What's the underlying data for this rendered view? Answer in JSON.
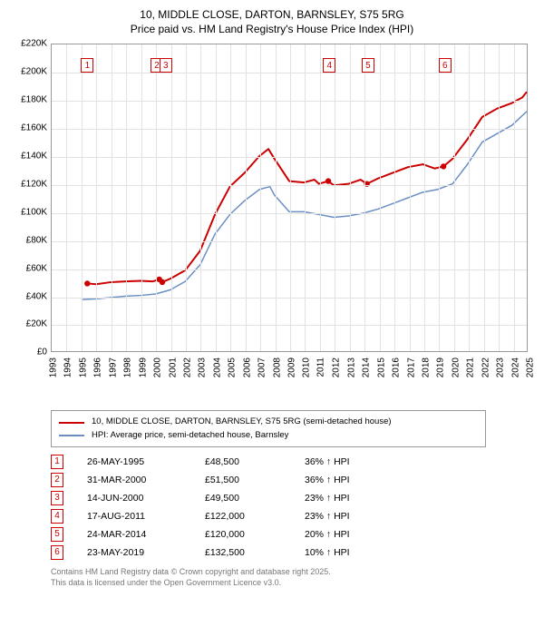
{
  "title_line1": "10, MIDDLE CLOSE, DARTON, BARNSLEY, S75 5RG",
  "title_line2": "Price paid vs. HM Land Registry's House Price Index (HPI)",
  "chart": {
    "type": "line",
    "background_color": "#ffffff",
    "grid_color": "#e2e2e2",
    "axis_color": "#999999",
    "x": {
      "min": 1993,
      "max": 2025,
      "step": 1
    },
    "y": {
      "min": 0,
      "max": 220000,
      "step": 20000,
      "prefix": "£",
      "suffix": "K",
      "div": 1000
    },
    "series": [
      {
        "name": "10, MIDDLE CLOSE, DARTON, BARNSLEY, S75 5RG (semi-detached house)",
        "color": "#cc0000",
        "width": 2,
        "points": [
          [
            1995.4,
            48500
          ],
          [
            1996,
            48000
          ],
          [
            1997,
            49500
          ],
          [
            1998,
            50000
          ],
          [
            1999,
            50500
          ],
          [
            1999.8,
            50000
          ],
          [
            2000.25,
            51500
          ],
          [
            2000.45,
            49500
          ],
          [
            2001,
            52000
          ],
          [
            2002,
            58000
          ],
          [
            2003,
            72000
          ],
          [
            2004,
            98000
          ],
          [
            2005,
            118000
          ],
          [
            2006,
            128000
          ],
          [
            2007,
            140000
          ],
          [
            2007.6,
            145000
          ],
          [
            2008,
            138000
          ],
          [
            2009,
            122000
          ],
          [
            2010,
            121000
          ],
          [
            2010.7,
            123000
          ],
          [
            2011,
            120000
          ],
          [
            2011.63,
            122000
          ],
          [
            2012,
            119000
          ],
          [
            2013,
            120000
          ],
          [
            2013.8,
            123000
          ],
          [
            2014.23,
            120000
          ],
          [
            2015,
            124000
          ],
          [
            2016,
            128000
          ],
          [
            2017,
            132000
          ],
          [
            2018,
            134000
          ],
          [
            2018.8,
            131000
          ],
          [
            2019.39,
            132500
          ],
          [
            2020,
            138000
          ],
          [
            2021,
            152000
          ],
          [
            2022,
            168000
          ],
          [
            2023,
            174000
          ],
          [
            2024,
            178000
          ],
          [
            2024.7,
            182000
          ],
          [
            2025,
            186000
          ]
        ]
      },
      {
        "name": "HPI: Average price, semi-detached house, Barnsley",
        "color": "#6a8fc5",
        "width": 1.5,
        "points": [
          [
            1995,
            37000
          ],
          [
            1996,
            37500
          ],
          [
            1997,
            38500
          ],
          [
            1998,
            39500
          ],
          [
            1999,
            40000
          ],
          [
            2000,
            41000
          ],
          [
            2001,
            44000
          ],
          [
            2002,
            50000
          ],
          [
            2003,
            62000
          ],
          [
            2004,
            84000
          ],
          [
            2005,
            98000
          ],
          [
            2006,
            108000
          ],
          [
            2007,
            116000
          ],
          [
            2007.7,
            118000
          ],
          [
            2008,
            112000
          ],
          [
            2009,
            100000
          ],
          [
            2010,
            100000
          ],
          [
            2011,
            98000
          ],
          [
            2012,
            96000
          ],
          [
            2013,
            97000
          ],
          [
            2014,
            99000
          ],
          [
            2015,
            102000
          ],
          [
            2016,
            106000
          ],
          [
            2017,
            110000
          ],
          [
            2018,
            114000
          ],
          [
            2019,
            116000
          ],
          [
            2020,
            120000
          ],
          [
            2021,
            134000
          ],
          [
            2022,
            150000
          ],
          [
            2023,
            156000
          ],
          [
            2024,
            162000
          ],
          [
            2025,
            172000
          ]
        ]
      }
    ],
    "sale_dots": {
      "color": "#cc0000",
      "radius": 3.2,
      "points": [
        [
          1995.4,
          48500
        ],
        [
          2000.25,
          51500
        ],
        [
          2000.45,
          49500
        ],
        [
          2011.63,
          122000
        ],
        [
          2014.23,
          120000
        ],
        [
          2019.39,
          132500
        ]
      ]
    },
    "markers": [
      {
        "n": "1",
        "x": 1995.4,
        "y": 200000,
        "color": "#cc0000"
      },
      {
        "n": "2",
        "x": 2000.05,
        "y": 200000,
        "color": "#cc0000"
      },
      {
        "n": "3",
        "x": 2000.65,
        "y": 200000,
        "color": "#cc0000"
      },
      {
        "n": "4",
        "x": 2011.63,
        "y": 200000,
        "color": "#cc0000"
      },
      {
        "n": "5",
        "x": 2014.23,
        "y": 200000,
        "color": "#cc0000"
      },
      {
        "n": "6",
        "x": 2019.39,
        "y": 200000,
        "color": "#cc0000"
      }
    ]
  },
  "legend": [
    {
      "color": "#cc0000",
      "label": "10, MIDDLE CLOSE, DARTON, BARNSLEY, S75 5RG (semi-detached house)"
    },
    {
      "color": "#6a8fc5",
      "label": "HPI: Average price, semi-detached house, Barnsley"
    }
  ],
  "sales": [
    {
      "n": "1",
      "date": "26-MAY-1995",
      "price": "£48,500",
      "pct": "36% ↑ HPI",
      "color": "#cc0000"
    },
    {
      "n": "2",
      "date": "31-MAR-2000",
      "price": "£51,500",
      "pct": "36% ↑ HPI",
      "color": "#cc0000"
    },
    {
      "n": "3",
      "date": "14-JUN-2000",
      "price": "£49,500",
      "pct": "23% ↑ HPI",
      "color": "#cc0000"
    },
    {
      "n": "4",
      "date": "17-AUG-2011",
      "price": "£122,000",
      "pct": "23% ↑ HPI",
      "color": "#cc0000"
    },
    {
      "n": "5",
      "date": "24-MAR-2014",
      "price": "£120,000",
      "pct": "20% ↑ HPI",
      "color": "#cc0000"
    },
    {
      "n": "6",
      "date": "23-MAY-2019",
      "price": "£132,500",
      "pct": "10% ↑ HPI",
      "color": "#cc0000"
    }
  ],
  "footer_line1": "Contains HM Land Registry data © Crown copyright and database right 2025.",
  "footer_line2": "This data is licensed under the Open Government Licence v3.0."
}
